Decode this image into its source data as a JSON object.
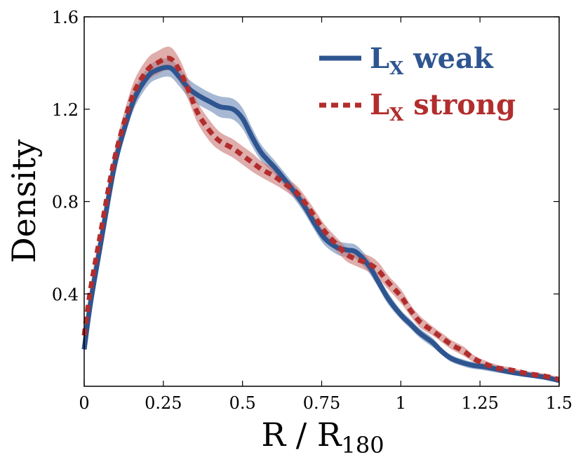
{
  "chart_data": {
    "type": "line",
    "title": "",
    "xlabel_main": "R / R",
    "xlabel_sub": "180",
    "ylabel": "Density",
    "xlim": [
      0,
      1.5
    ],
    "ylim": [
      0,
      1.6
    ],
    "xticks": [
      {
        "value": 0,
        "label": "0"
      },
      {
        "value": 0.25,
        "label": "0.25"
      },
      {
        "value": 0.5,
        "label": "0.5"
      },
      {
        "value": 0.75,
        "label": "0.75"
      },
      {
        "value": 1,
        "label": "1"
      },
      {
        "value": 1.25,
        "label": "1.25"
      },
      {
        "value": 1.5,
        "label": "1.5"
      }
    ],
    "yticks": [
      {
        "value": 0.4,
        "label": "0.4"
      },
      {
        "value": 0.8,
        "label": "0.8"
      },
      {
        "value": 1.2,
        "label": "1.2"
      },
      {
        "value": 1.6,
        "label": "1.6"
      }
    ],
    "grid": false,
    "legend_position": "top-right",
    "series": [
      {
        "name": "weak",
        "legend_main": "L",
        "legend_sub": "X",
        "legend_suffix": " weak",
        "color": "#2e5590",
        "band_color": "#6f8db8",
        "style": "solid",
        "x": [
          0,
          0.02,
          0.05,
          0.08,
          0.1,
          0.13,
          0.16,
          0.2,
          0.23,
          0.27,
          0.3,
          0.33,
          0.36,
          0.4,
          0.43,
          0.47,
          0.5,
          0.53,
          0.56,
          0.6,
          0.63,
          0.67,
          0.7,
          0.73,
          0.76,
          0.8,
          0.83,
          0.86,
          0.9,
          0.93,
          0.96,
          1,
          1.03,
          1.06,
          1.1,
          1.13,
          1.16,
          1.2,
          1.23,
          1.26,
          1.3,
          1.35,
          1.4,
          1.45,
          1.5
        ],
        "y": [
          0.16,
          0.36,
          0.6,
          0.84,
          0.98,
          1.13,
          1.25,
          1.34,
          1.37,
          1.38,
          1.34,
          1.29,
          1.26,
          1.23,
          1.21,
          1.2,
          1.16,
          1.08,
          1.01,
          0.95,
          0.9,
          0.83,
          0.77,
          0.7,
          0.64,
          0.6,
          0.59,
          0.58,
          0.52,
          0.45,
          0.38,
          0.31,
          0.27,
          0.23,
          0.19,
          0.15,
          0.12,
          0.1,
          0.09,
          0.085,
          0.075,
          0.06,
          0.05,
          0.04,
          0.025
        ],
        "band_halfwidth": [
          0.02,
          0.02,
          0.025,
          0.03,
          0.035,
          0.04,
          0.04,
          0.04,
          0.04,
          0.04,
          0.04,
          0.04,
          0.04,
          0.04,
          0.045,
          0.045,
          0.045,
          0.04,
          0.035,
          0.03,
          0.03,
          0.03,
          0.03,
          0.03,
          0.03,
          0.03,
          0.03,
          0.03,
          0.03,
          0.025,
          0.025,
          0.02,
          0.02,
          0.02,
          0.02,
          0.015,
          0.015,
          0.015,
          0.015,
          0.015,
          0.015,
          0.01,
          0.01,
          0.01,
          0.01
        ]
      },
      {
        "name": "strong",
        "legend_main": "L",
        "legend_sub": "X",
        "legend_suffix": " strong",
        "color": "#b22d2d",
        "band_color": "#cc7a78",
        "style": "dotted",
        "x": [
          0,
          0.02,
          0.05,
          0.08,
          0.1,
          0.13,
          0.16,
          0.2,
          0.23,
          0.27,
          0.3,
          0.33,
          0.36,
          0.4,
          0.43,
          0.47,
          0.5,
          0.53,
          0.56,
          0.6,
          0.63,
          0.67,
          0.7,
          0.73,
          0.76,
          0.8,
          0.83,
          0.86,
          0.9,
          0.93,
          0.96,
          1,
          1.03,
          1.06,
          1.1,
          1.13,
          1.16,
          1.2,
          1.23,
          1.26,
          1.3,
          1.35,
          1.4,
          1.45,
          1.5
        ],
        "y": [
          0.22,
          0.42,
          0.65,
          0.88,
          1.01,
          1.16,
          1.28,
          1.37,
          1.4,
          1.42,
          1.37,
          1.28,
          1.18,
          1.1,
          1.06,
          1.03,
          1.0,
          0.97,
          0.94,
          0.91,
          0.88,
          0.84,
          0.79,
          0.73,
          0.67,
          0.61,
          0.57,
          0.55,
          0.53,
          0.5,
          0.45,
          0.39,
          0.33,
          0.28,
          0.24,
          0.21,
          0.18,
          0.15,
          0.12,
          0.1,
          0.08,
          0.07,
          0.055,
          0.045,
          0.03
        ],
        "band_halfwidth": [
          0.02,
          0.02,
          0.025,
          0.03,
          0.035,
          0.045,
          0.05,
          0.05,
          0.05,
          0.05,
          0.05,
          0.045,
          0.045,
          0.045,
          0.04,
          0.04,
          0.04,
          0.04,
          0.035,
          0.035,
          0.03,
          0.03,
          0.03,
          0.03,
          0.03,
          0.03,
          0.03,
          0.03,
          0.035,
          0.035,
          0.03,
          0.03,
          0.025,
          0.025,
          0.02,
          0.02,
          0.02,
          0.02,
          0.015,
          0.015,
          0.015,
          0.01,
          0.01,
          0.01,
          0.01
        ]
      }
    ]
  }
}
